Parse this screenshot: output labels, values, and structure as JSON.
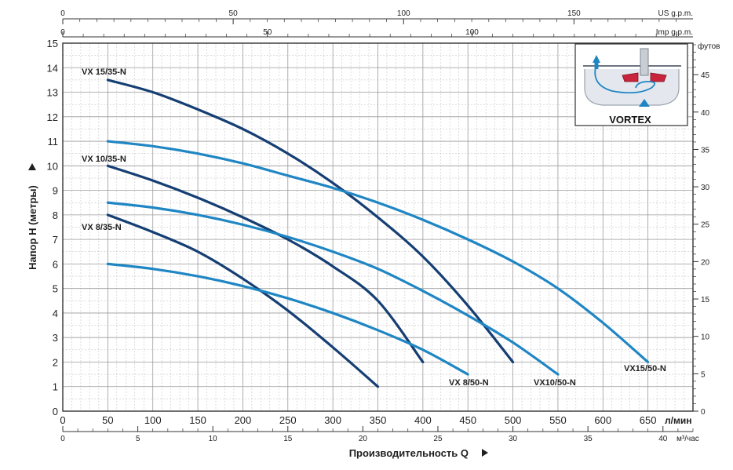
{
  "chart_data": {
    "type": "line",
    "colors": {
      "dark": "#153e73",
      "light": "#1f86c4",
      "grid": "#b9b9b9",
      "frame": "#333333"
    },
    "ylabel": "Напор Н (метры)",
    "xlabel": "Производительность Q",
    "x_unit_lmin": "л/мин",
    "x_unit_m3h": "м³/час",
    "top_unit_us": "US g.p.m.",
    "top_unit_imp": "Imp g.p.m.",
    "right_unit_ft": "футов",
    "xlim": [
      0,
      700
    ],
    "ylim": [
      0,
      15
    ],
    "x_ticks_lmin": [
      0,
      50,
      100,
      150,
      200,
      250,
      300,
      350,
      400,
      450,
      500,
      550,
      600,
      650
    ],
    "y_ticks_m": [
      0,
      1,
      2,
      3,
      4,
      5,
      6,
      7,
      8,
      9,
      10,
      11,
      12,
      13,
      14,
      15
    ],
    "x_ticks_m3h": [
      0,
      5,
      10,
      15,
      20,
      25,
      30,
      35,
      40
    ],
    "top_ticks_us": [
      0,
      50,
      100,
      150
    ],
    "top_ticks_imp": [
      0,
      50,
      100
    ],
    "right_ticks_ft": [
      0,
      5,
      10,
      15,
      20,
      25,
      30,
      35,
      40,
      45
    ],
    "series": [
      {
        "name": "VX 15/35-N",
        "tone": "dark",
        "x": [
          50,
          100,
          150,
          200,
          250,
          300,
          350,
          400,
          450,
          500
        ],
        "y": [
          13.5,
          13.0,
          12.3,
          11.5,
          10.5,
          9.3,
          7.9,
          6.3,
          4.3,
          2.0
        ]
      },
      {
        "name": "VX 10/35-N",
        "tone": "dark",
        "x": [
          50,
          100,
          150,
          200,
          250,
          300,
          350,
          400
        ],
        "y": [
          10.0,
          9.4,
          8.7,
          7.9,
          7.0,
          5.9,
          4.5,
          2.0
        ]
      },
      {
        "name": "VX 8/35-N",
        "tone": "dark",
        "x": [
          50,
          100,
          150,
          200,
          250,
          300,
          350
        ],
        "y": [
          8.0,
          7.3,
          6.5,
          5.4,
          4.1,
          2.6,
          1.0
        ]
      },
      {
        "name": "VX15/50-N",
        "tone": "light",
        "x": [
          50,
          100,
          150,
          200,
          250,
          300,
          350,
          400,
          450,
          500,
          550,
          600,
          650
        ],
        "y": [
          11.0,
          10.8,
          10.5,
          10.1,
          9.6,
          9.1,
          8.5,
          7.8,
          7.0,
          6.1,
          5.0,
          3.6,
          2.0
        ]
      },
      {
        "name": "VX10/50-N",
        "tone": "light",
        "x": [
          50,
          100,
          150,
          200,
          250,
          300,
          350,
          400,
          450,
          500,
          550
        ],
        "y": [
          8.5,
          8.3,
          8.0,
          7.6,
          7.1,
          6.5,
          5.8,
          4.9,
          3.9,
          2.8,
          1.5
        ]
      },
      {
        "name": "VX 8/50-N",
        "tone": "light",
        "x": [
          50,
          100,
          150,
          200,
          250,
          300,
          350,
          400,
          450
        ],
        "y": [
          6.0,
          5.8,
          5.5,
          5.1,
          4.6,
          4.0,
          3.3,
          2.5,
          1.5
        ]
      }
    ]
  },
  "inset": {
    "caption": "VORTEX"
  }
}
